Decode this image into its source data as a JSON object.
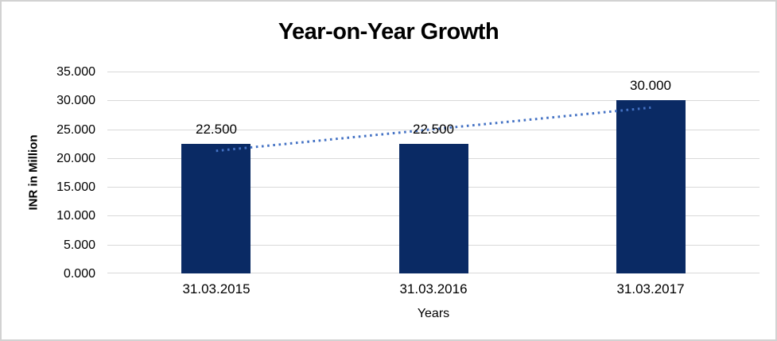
{
  "window": {
    "background_color": "#ffffff",
    "border_color": "#d2d2d2"
  },
  "chart_data": {
    "type": "bar",
    "title": "Year-on-Year Growth",
    "xlabel": "Years",
    "ylabel": "INR in Million",
    "categories": [
      "31.03.2015",
      "31.03.2016",
      "31.03.2017"
    ],
    "values": [
      22500,
      22500,
      30000
    ],
    "value_labels": [
      "22.500",
      "22.500",
      "30.000"
    ],
    "ylim": [
      0,
      35000
    ],
    "ytick_step": 5000,
    "ytick_labels": [
      "0.000",
      "5.000",
      "10.000",
      "15.000",
      "20.000",
      "25.000",
      "30.000",
      "35.000"
    ],
    "grid": true,
    "legend": "none",
    "bar_color": "#0a2a64",
    "gridline_color": "#d9d9d9",
    "text_color": "#000000",
    "trendline": {
      "type": "linear",
      "style": "dotted",
      "color": "#4472c4"
    }
  }
}
